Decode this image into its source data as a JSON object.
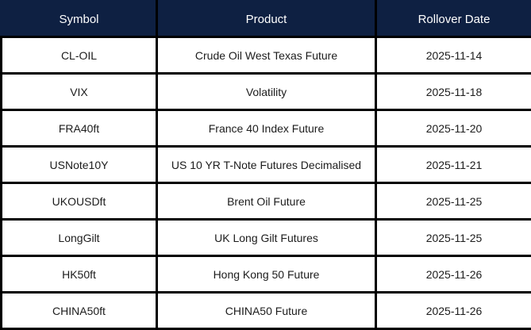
{
  "chart_data": {
    "type": "table",
    "columns": [
      "Symbol",
      "Product",
      "Rollover Date"
    ],
    "rows": [
      [
        "CL-OIL",
        "Crude Oil West Texas Future",
        "2025-11-14"
      ],
      [
        "VIX",
        "Volatility",
        "2025-11-18"
      ],
      [
        "FRA40ft",
        "France 40 Index Future",
        "2025-11-20"
      ],
      [
        "USNote10Y",
        "US 10 YR T-Note Futures Decimalised",
        "2025-11-21"
      ],
      [
        "UKOUSDft",
        "Brent Oil Future",
        "2025-11-25"
      ],
      [
        "LongGilt",
        "UK Long Gilt Futures",
        "2025-11-25"
      ],
      [
        "HK50ft",
        "Hong Kong 50 Future",
        "2025-11-26"
      ],
      [
        "CHINA50ft",
        "CHINA50 Future",
        "2025-11-26"
      ]
    ],
    "layout": {
      "grid": true,
      "header_position": "top"
    }
  },
  "colors": {
    "header_bg": "#0e2042",
    "header_text": "#ffffff",
    "body_bg": "#ffffff",
    "body_text": "#1c1c1c",
    "border": "#000000"
  }
}
